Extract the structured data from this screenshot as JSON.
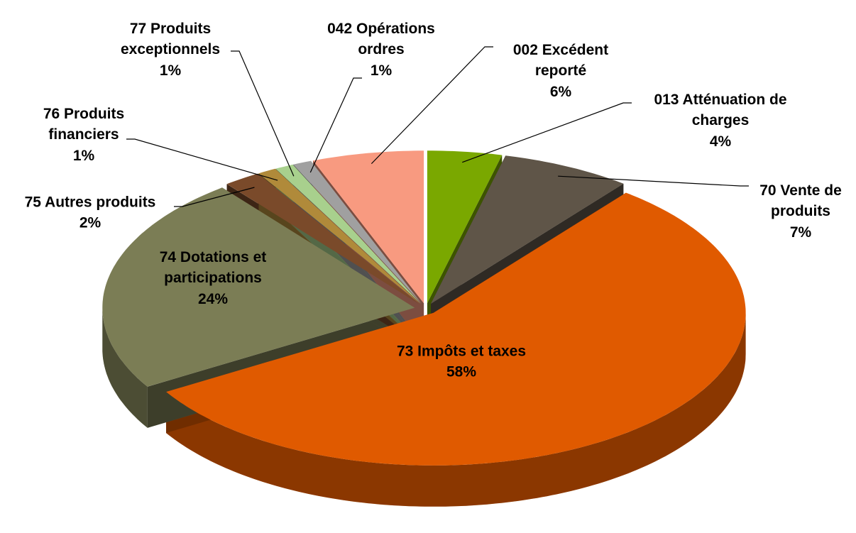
{
  "chart_data": {
    "type": "pie",
    "categories": [
      "013 Atténuation de charges",
      "70 Vente de produits",
      "73 Impôts et taxes",
      "74 Dotations et participations",
      "75 Autres produits",
      "76 Produits financiers",
      "77 Produits exceptionnels",
      "042 Opérations ordres",
      "002 Excédent reporté"
    ],
    "values": [
      4,
      7,
      58,
      24,
      2,
      1,
      1,
      1,
      6
    ],
    "value_labels": [
      "4%",
      "7%",
      "58%",
      "24%",
      "2%",
      "1%",
      "1%",
      "1%",
      "6%"
    ],
    "colors": [
      "#7aa800",
      "#5f5548",
      "#e05a00",
      "#7b7d55",
      "#7a4a2a",
      "#b08a3a",
      "#a8d08d",
      "#a0a0a0",
      "#f89a80"
    ]
  }
}
